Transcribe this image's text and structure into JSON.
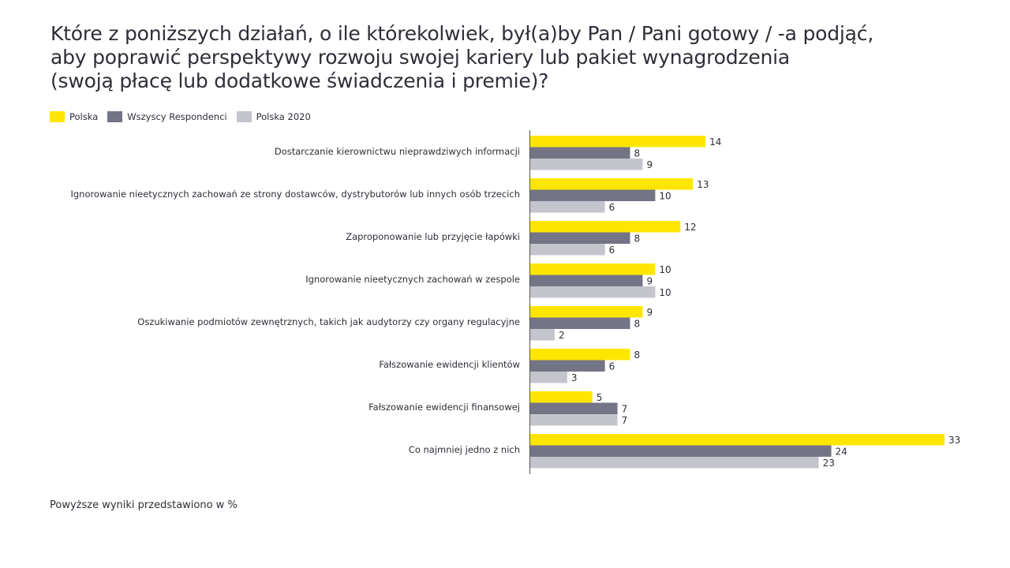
{
  "chart_data": {
    "type": "bar",
    "orientation": "horizontal",
    "title_lines": [
      "Które z poniższych działań, o ile którekolwiek, był(a)by Pan / Pani gotowy / -a podjąć,",
      "aby poprawić perspektywy rozwoju swojej kariery lub pakiet wynagrodzenia",
      "(swoją płacę lub dodatkowe świadczenia i premie)?"
    ],
    "categories": [
      "Dostarczanie kierownictwu nieprawdziwych informacji",
      "Ignorowanie nieetycznych zachowań ze strony dostawców, dystrybutorów lub innych osób trzecich",
      "Zaproponowanie lub przyjęcie łapówki",
      "Ignorowanie nieetycznych zachowań w zespole",
      "Oszukiwanie podmiotów zewnętrznych, takich jak audytorzy czy organy regulacyjne",
      "Fałszowanie ewidencji klientów",
      "Fałszowanie ewidencji finansowej",
      "Co najmniej jedno z nich"
    ],
    "series": [
      {
        "name": "Polska",
        "color": "#FFE600",
        "values": [
          14,
          13,
          12,
          10,
          9,
          8,
          5,
          33
        ]
      },
      {
        "name": "Wszyscy Respondenci",
        "color": "#747487",
        "values": [
          8,
          10,
          8,
          9,
          8,
          6,
          7,
          24
        ]
      },
      {
        "name": "Polska 2020",
        "color": "#C4C4CD",
        "values": [
          9,
          6,
          6,
          10,
          2,
          3,
          7,
          23
        ]
      }
    ],
    "xlim": [
      0,
      33
    ],
    "xlabel": "",
    "ylabel": "",
    "grid": false,
    "legend_position": "top-left",
    "note": "Powyższe wyniki przedstawiono w %"
  }
}
